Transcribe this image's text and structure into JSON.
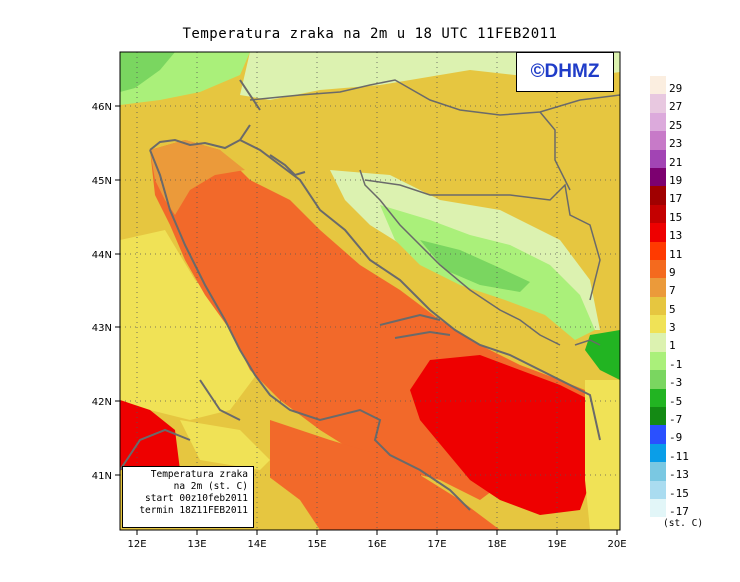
{
  "title": "Temperatura zraka na 2m u 18 UTC 11FEB2011",
  "logo": "©DHMZ",
  "info": {
    "line1": "Temperatura zraka",
    "line2": "na 2m (st. C)",
    "line3": "start 00z10feb2011",
    "line4": "termin 18Z11FEB2011"
  },
  "lat_labels": [
    "46N",
    "45N",
    "44N",
    "43N",
    "42N",
    "41N"
  ],
  "lon_labels": [
    "12E",
    "13E",
    "14E",
    "15E",
    "16E",
    "17E",
    "18E",
    "19E",
    "20E"
  ],
  "legend": {
    "unit": "(st. C)",
    "labels": [
      "29",
      "27",
      "25",
      "23",
      "21",
      "19",
      "17",
      "15",
      "13",
      "11",
      "9",
      "7",
      "5",
      "3",
      "1",
      "-1",
      "-3",
      "-5",
      "-7",
      "-9",
      "-11",
      "-13",
      "-15",
      "-17"
    ],
    "colors": [
      "#fbeee0",
      "#e8c8e0",
      "#dcaadc",
      "#c77ac8",
      "#a244b4",
      "#7c0070",
      "#a00000",
      "#c40000",
      "#ee0000",
      "#ff3a00",
      "#f46a1e",
      "#eb9a3a",
      "#e6c640",
      "#f0e256",
      "#dcf2b0",
      "#aaf07a",
      "#7ad660",
      "#22b422",
      "#148a14",
      "#2a50ff",
      "#0a9ee8",
      "#7ac8e2",
      "#aadcf0",
      "#e2f6f8"
    ]
  },
  "colors": {
    "sea_warm": "#f2692a",
    "sea_hot": "#ee0000",
    "land_mild": "#f0e256",
    "land_cool": "#aaf07a",
    "coast": "#6a6a6a"
  }
}
